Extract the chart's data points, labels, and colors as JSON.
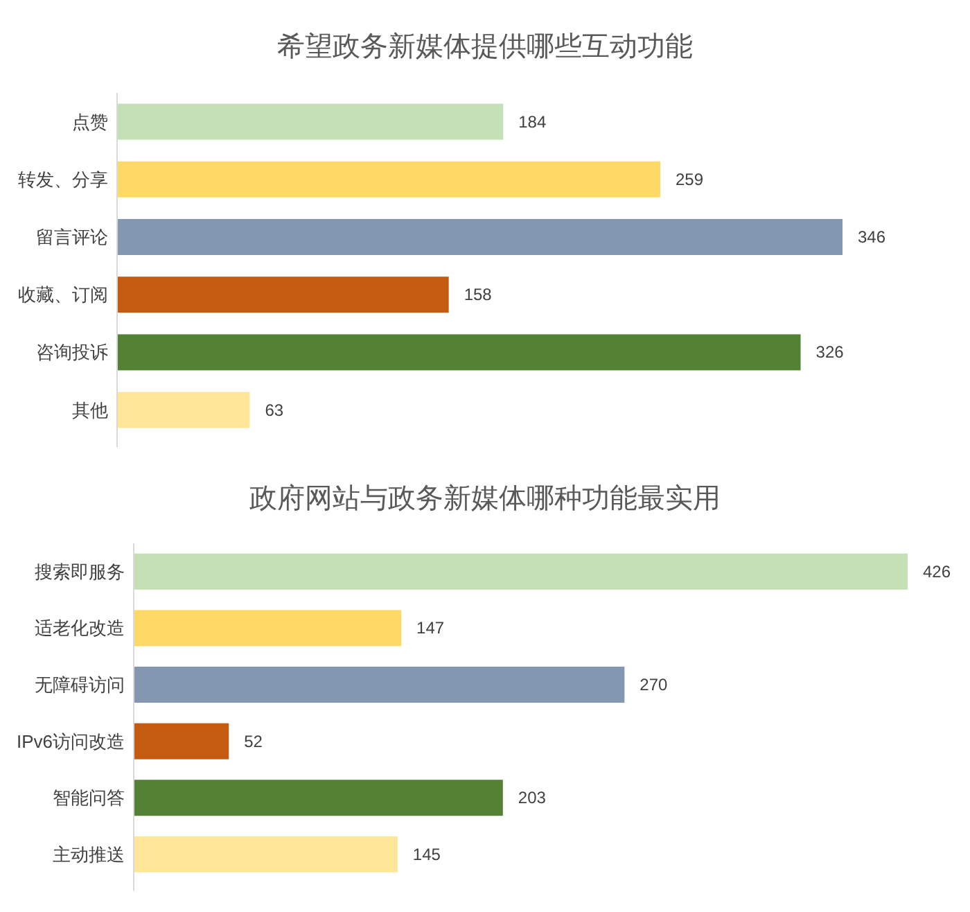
{
  "chart_data": [
    {
      "type": "bar",
      "orientation": "horizontal",
      "title": "希望政务新媒体提供哪些互动功能",
      "categories": [
        "点赞",
        "转发、分享",
        "留言评论",
        "收藏、订阅",
        "咨询投诉",
        "其他"
      ],
      "values": [
        184,
        259,
        346,
        158,
        326,
        63
      ],
      "colors": [
        "#c5e0b4",
        "#ffd966",
        "#8497b0",
        "#c55a11",
        "#548235",
        "#ffe699"
      ],
      "data_labels": true
    },
    {
      "type": "bar",
      "orientation": "horizontal",
      "title": "政府网站与政务新媒体哪种功能最实用",
      "categories": [
        "搜索即服务",
        "适老化改造",
        "无障碍访问",
        "IPv6访问改造",
        "智能问答",
        "主动推送"
      ],
      "values": [
        426,
        147,
        270,
        52,
        203,
        145
      ],
      "colors": [
        "#c5e0b4",
        "#ffd966",
        "#8497b0",
        "#c55a11",
        "#548235",
        "#ffe699"
      ],
      "data_labels": true
    }
  ]
}
